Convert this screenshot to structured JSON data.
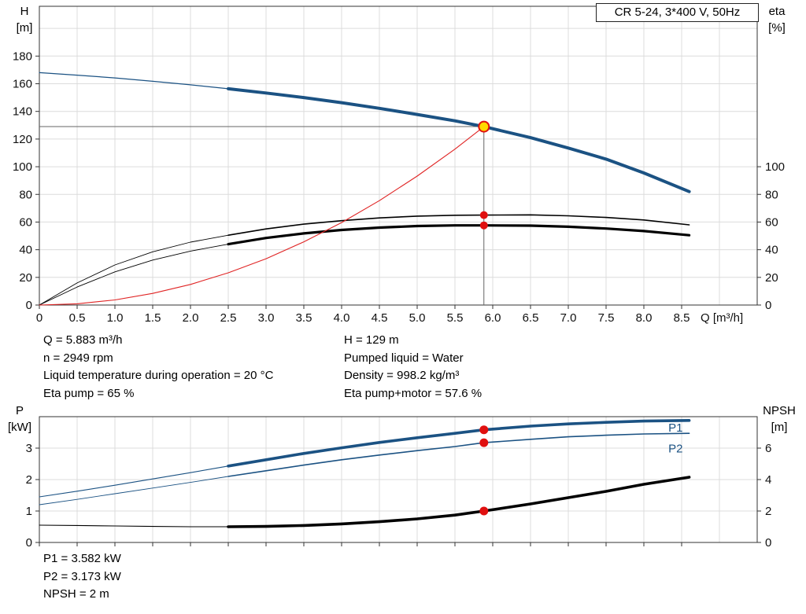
{
  "title_box": {
    "label": "CR 5-24, 3*400 V, 50Hz"
  },
  "info_panel": {
    "left": [
      "Q = 5.883 m³/h",
      "n = 2949 rpm",
      "Liquid temperature during operation = 20 °C",
      "Eta pump = 65 %"
    ],
    "right": [
      "H = 129 m",
      "Pumped liquid = Water",
      "Density = 998.2 kg/m³",
      "Eta pump+motor = 57.6 %"
    ]
  },
  "bottom_panel": {
    "lines": [
      "P1 = 3.582 kW",
      "P2 = 3.173 kW",
      "NPSH = 2 m"
    ]
  },
  "chart_data": [
    {
      "type": "line",
      "title": "CR 5-24, 3*400 V, 50Hz",
      "x_label": "Q [m³/h]",
      "y_left_label": [
        "H",
        "[m]"
      ],
      "y_right_label": [
        "eta",
        "[%]"
      ],
      "x_range": [
        0,
        9.5
      ],
      "y_left_range": [
        0,
        216
      ],
      "right_scale": 1,
      "x_grid_step": 0.5,
      "y_grid_step": 20,
      "x_ticks": [
        0,
        0.5,
        1,
        1.5,
        2,
        2.5,
        3,
        3.5,
        4,
        4.5,
        5,
        5.5,
        6,
        6.5,
        7,
        7.5,
        8,
        8.5
      ],
      "x_tick_labels": [
        "0",
        "0.5",
        "1.0",
        "1.5",
        "2.0",
        "2.5",
        "3.0",
        "3.5",
        "4.0",
        "4.5",
        "5.0",
        "5.5",
        "6.0",
        "6.5",
        "7.0",
        "7.5",
        "8.0",
        "8.5"
      ],
      "y_left_ticks": [
        0,
        20,
        40,
        60,
        80,
        100,
        120,
        140,
        160,
        180
      ],
      "y_right_ticks": [
        0,
        20,
        40,
        60,
        80,
        100
      ],
      "crosshair": {
        "x": 5.883,
        "y": 129
      },
      "series": [
        {
          "name": "head",
          "axis": "left",
          "color": "#1b5283",
          "w1": 1.2,
          "w2": 4,
          "split": 2.5,
          "points": [
            [
              0,
              168
            ],
            [
              0.5,
              166.2
            ],
            [
              1,
              164.2
            ],
            [
              1.5,
              161.8
            ],
            [
              2,
              159.2
            ],
            [
              2.5,
              156.4
            ],
            [
              3,
              153.3
            ],
            [
              3.5,
              150
            ],
            [
              4,
              146.3
            ],
            [
              4.5,
              142.2
            ],
            [
              5,
              137.8
            ],
            [
              5.5,
              133.2
            ],
            [
              5.883,
              129
            ],
            [
              6.5,
              121
            ],
            [
              7,
              113.5
            ],
            [
              7.5,
              105.5
            ],
            [
              8,
              95.5
            ],
            [
              8.6,
              82
            ]
          ]
        },
        {
          "name": "eta-pump",
          "axis": "right",
          "color": "#000000",
          "w1": 0.9,
          "w2": 1.6,
          "split": 2.5,
          "points": [
            [
              0,
              0
            ],
            [
              0.5,
              16
            ],
            [
              1,
              29
            ],
            [
              1.5,
              38.5
            ],
            [
              2,
              45.5
            ],
            [
              2.5,
              50.5
            ],
            [
              3,
              55
            ],
            [
              3.5,
              58.5
            ],
            [
              4,
              61
            ],
            [
              4.5,
              63
            ],
            [
              5,
              64.3
            ],
            [
              5.5,
              64.9
            ],
            [
              5.883,
              65
            ],
            [
              6.5,
              65.2
            ],
            [
              7,
              64.5
            ],
            [
              7.5,
              63.3
            ],
            [
              8,
              61.5
            ],
            [
              8.6,
              58
            ]
          ]
        },
        {
          "name": "eta-pump-motor",
          "axis": "right",
          "color": "#000000",
          "w1": 0.9,
          "w2": 3.2,
          "split": 2.5,
          "points": [
            [
              0,
              0
            ],
            [
              0.5,
              13
            ],
            [
              1,
              24
            ],
            [
              1.5,
              32.5
            ],
            [
              2,
              39
            ],
            [
              2.5,
              44
            ],
            [
              3,
              48.5
            ],
            [
              3.5,
              51.8
            ],
            [
              4,
              54.3
            ],
            [
              4.5,
              56
            ],
            [
              5,
              57.1
            ],
            [
              5.5,
              57.6
            ],
            [
              5.883,
              57.6
            ],
            [
              6.5,
              57.4
            ],
            [
              7,
              56.6
            ],
            [
              7.5,
              55.3
            ],
            [
              8,
              53.5
            ],
            [
              8.6,
              50.5
            ]
          ]
        },
        {
          "name": "system-curve",
          "axis": "left",
          "color": "#e02424",
          "w2": 1.1,
          "points": [
            [
              0,
              0
            ],
            [
              0.5,
              0.9
            ],
            [
              1,
              3.7
            ],
            [
              1.5,
              8.4
            ],
            [
              2,
              14.9
            ],
            [
              2.5,
              23.3
            ],
            [
              3,
              33.5
            ],
            [
              3.5,
              45.7
            ],
            [
              4,
              59.6
            ],
            [
              4.5,
              75.5
            ],
            [
              5,
              93.2
            ],
            [
              5.5,
              112.7
            ],
            [
              5.883,
              129
            ]
          ]
        }
      ],
      "markers": [
        {
          "name": "duty-point-marker",
          "x": 5.883,
          "y": 129,
          "axis": "left",
          "r": 6.5,
          "fill": "#ffd900",
          "stroke": "#e01010",
          "sw": 2,
          "interactable": true
        },
        {
          "name": "eta-pump-marker",
          "x": 5.883,
          "y": 65,
          "axis": "right",
          "r": 5,
          "fill": "#e01010"
        },
        {
          "name": "eta-pump-motor-marker",
          "x": 5.883,
          "y": 57.6,
          "axis": "right",
          "r": 5,
          "fill": "#e01010"
        }
      ],
      "annotations": []
    },
    {
      "type": "line",
      "y_left_label": [
        "P",
        "[kW]"
      ],
      "y_right_label": [
        "NPSH",
        "[m]"
      ],
      "x_range": [
        0,
        9.5
      ],
      "y_left_range": [
        0,
        4
      ],
      "right_scale": 0.5,
      "x_grid_step": 0.5,
      "y_grid_step": 1,
      "x_ticks": [
        0,
        0.5,
        1,
        1.5,
        2,
        2.5,
        3,
        3.5,
        4,
        4.5,
        5,
        5.5,
        6,
        6.5,
        7,
        7.5,
        8,
        8.5
      ],
      "x_tick_labels": [],
      "y_left_ticks": [
        0,
        1,
        2,
        3
      ],
      "y_right_ticks": [
        0,
        2,
        4,
        6
      ],
      "series": [
        {
          "name": "p1",
          "axis": "left",
          "color": "#1b5283",
          "w1": 1.1,
          "w2": 3.6,
          "split": 2.5,
          "points": [
            [
              0,
              1.45
            ],
            [
              0.5,
              1.63
            ],
            [
              1,
              1.82
            ],
            [
              1.5,
              2.02
            ],
            [
              2,
              2.22
            ],
            [
              2.5,
              2.43
            ],
            [
              3,
              2.63
            ],
            [
              3.5,
              2.83
            ],
            [
              4,
              3.01
            ],
            [
              4.5,
              3.18
            ],
            [
              5,
              3.33
            ],
            [
              5.5,
              3.47
            ],
            [
              5.883,
              3.582
            ],
            [
              6.5,
              3.7
            ],
            [
              7,
              3.77
            ],
            [
              7.5,
              3.82
            ],
            [
              8,
              3.86
            ],
            [
              8.6,
              3.88
            ]
          ]
        },
        {
          "name": "p2",
          "axis": "left",
          "color": "#1b5283",
          "w1": 0.9,
          "w2": 1.6,
          "split": 2.5,
          "points": [
            [
              0,
              1.2
            ],
            [
              0.5,
              1.37
            ],
            [
              1,
              1.55
            ],
            [
              1.5,
              1.73
            ],
            [
              2,
              1.91
            ],
            [
              2.5,
              2.1
            ],
            [
              3,
              2.28
            ],
            [
              3.5,
              2.46
            ],
            [
              4,
              2.63
            ],
            [
              4.5,
              2.78
            ],
            [
              5,
              2.92
            ],
            [
              5.5,
              3.05
            ],
            [
              5.883,
              3.173
            ],
            [
              6.5,
              3.28
            ],
            [
              7,
              3.36
            ],
            [
              7.5,
              3.41
            ],
            [
              8,
              3.45
            ],
            [
              8.6,
              3.47
            ]
          ]
        },
        {
          "name": "npsh",
          "axis": "right",
          "color": "#000000",
          "w1": 1.1,
          "w2": 3.6,
          "split": 2.5,
          "points": [
            [
              0,
              1.1
            ],
            [
              0.5,
              1.08
            ],
            [
              1,
              1.05
            ],
            [
              1.5,
              1.02
            ],
            [
              2,
              1.0
            ],
            [
              2.5,
              1.0
            ],
            [
              3,
              1.02
            ],
            [
              3.5,
              1.08
            ],
            [
              4,
              1.18
            ],
            [
              4.5,
              1.32
            ],
            [
              5,
              1.5
            ],
            [
              5.5,
              1.74
            ],
            [
              5.883,
              2.0
            ],
            [
              6.5,
              2.45
            ],
            [
              7,
              2.85
            ],
            [
              7.5,
              3.25
            ],
            [
              8,
              3.7
            ],
            [
              8.6,
              4.15
            ]
          ]
        }
      ],
      "markers": [
        {
          "name": "p1-marker",
          "x": 5.883,
          "y": 3.582,
          "axis": "left",
          "r": 5.5,
          "fill": "#e01010"
        },
        {
          "name": "p2-marker",
          "x": 5.883,
          "y": 3.173,
          "axis": "left",
          "r": 5.5,
          "fill": "#e01010"
        },
        {
          "name": "npsh-marker",
          "x": 5.883,
          "y": 2,
          "axis": "right",
          "r": 5.5,
          "fill": "#e01010"
        }
      ],
      "annotations": [
        {
          "text": "P1",
          "x": 8.42,
          "y": 3.52,
          "color": "#1b5283"
        },
        {
          "text": "P2",
          "x": 8.42,
          "y": 2.86,
          "color": "#1b5283"
        }
      ]
    }
  ]
}
